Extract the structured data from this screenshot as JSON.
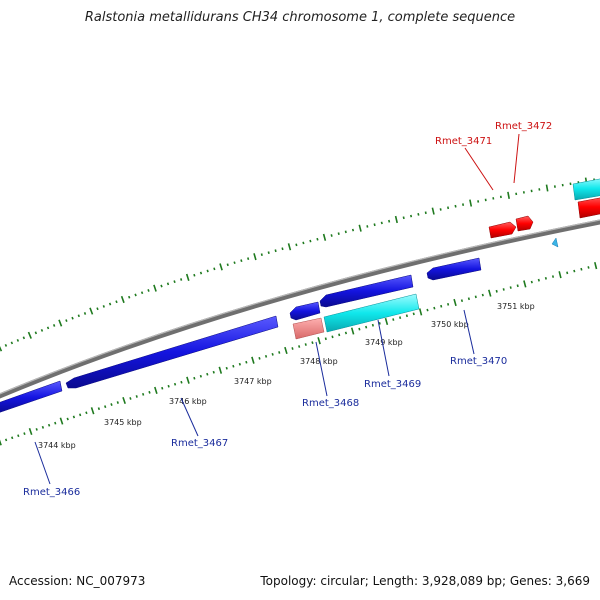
{
  "title": "Ralstonia metallidurans CH34 chromosome 1, complete sequence",
  "footer": {
    "accession": "Accession: NC_007973",
    "topology": "Topology: circular; Length: 3,928,089 bp; Genes: 3,669"
  },
  "scale_labels": [
    "3744 kbp",
    "3745 kbp",
    "3746 kbp",
    "3747 kbp",
    "3748 kbp",
    "3749 kbp",
    "3750 kbp",
    "3751 kbp"
  ],
  "genes": [
    {
      "id": "Rmet_3466",
      "color": "#1a2c9c"
    },
    {
      "id": "Rmet_3467",
      "color": "#1a2c9c"
    },
    {
      "id": "Rmet_3468",
      "color": "#1a2c9c"
    },
    {
      "id": "Rmet_3469",
      "color": "#1a2c9c"
    },
    {
      "id": "Rmet_3470",
      "color": "#1a2c9c"
    },
    {
      "id": "Rmet_3471",
      "color": "#cc1111"
    },
    {
      "id": "Rmet_3472",
      "color": "#cc1111"
    }
  ],
  "colors": {
    "backbone": "#7f7f7f",
    "tick": "#1f7a1f",
    "forward_gene": "#ff0000",
    "reverse_gene": "#1010d8",
    "rna_gene": "#00e5e5",
    "pseudo_gene": "#f08080",
    "marker": "#3ab4e6"
  }
}
